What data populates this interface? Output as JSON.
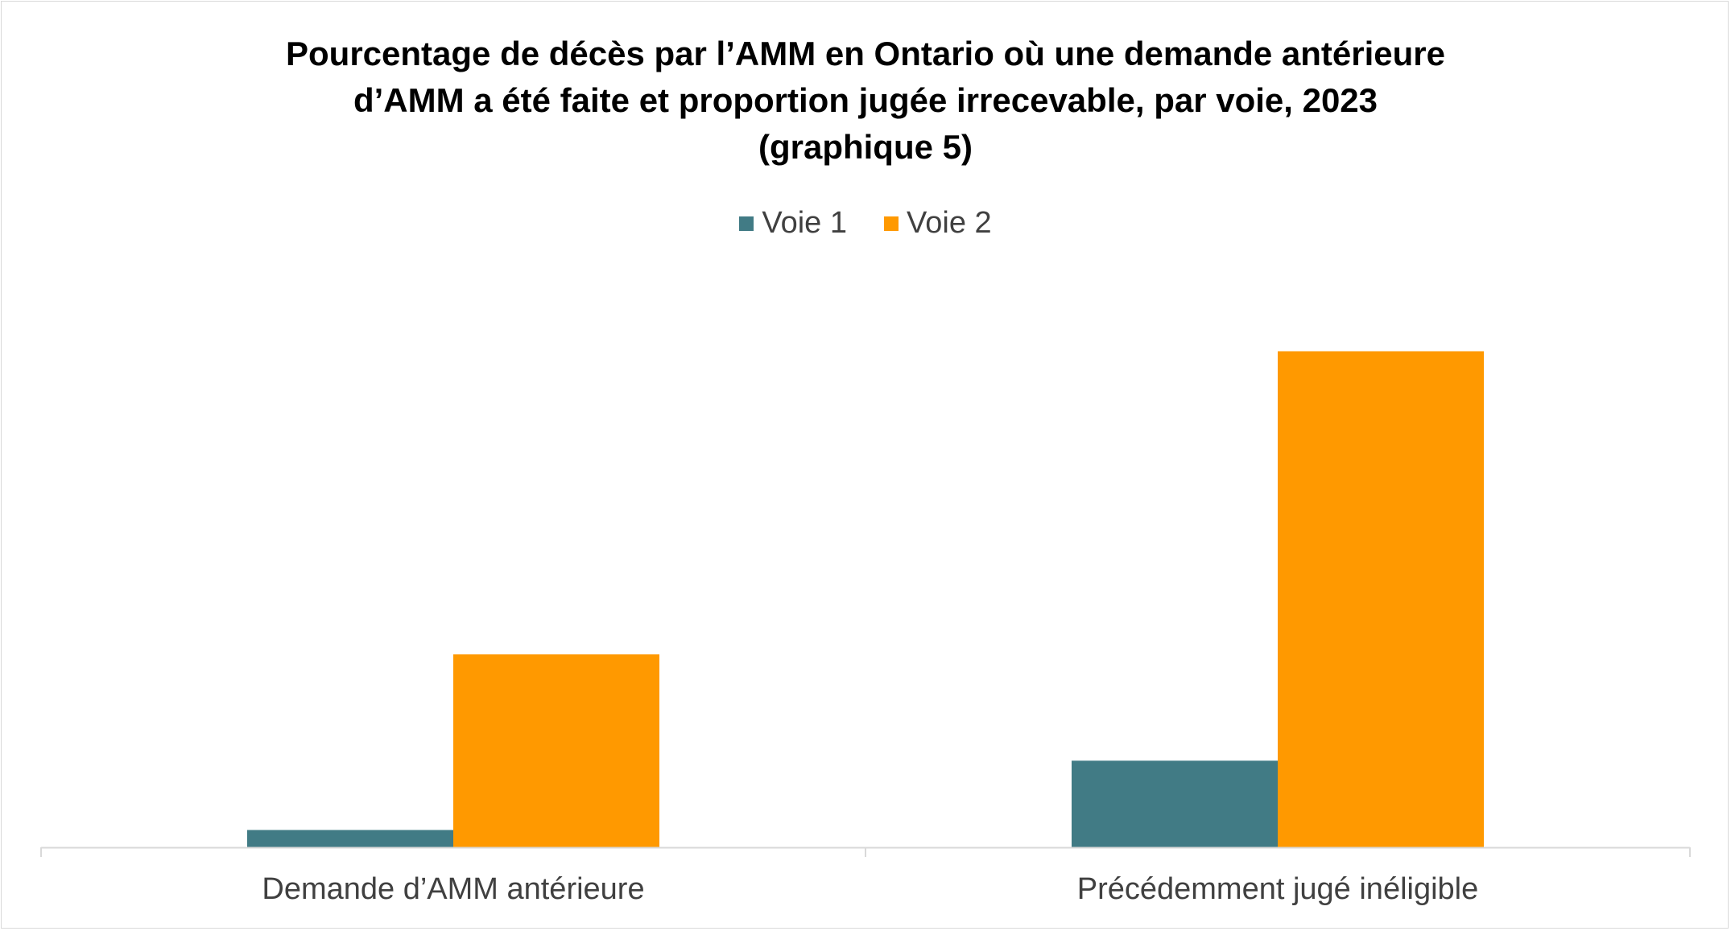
{
  "chart_data": {
    "type": "bar",
    "title_lines": [
      "Pourcentage de décès par l’AMM en Ontario où une demande antérieure",
      "d’AMM a été faite et proportion jugée irrecevable, par voie, 2023",
      "(graphique 5)"
    ],
    "categories": [
      "Demande d’AMM antérieure",
      "Précédemment jugé inéligible"
    ],
    "series": [
      {
        "name": "Voie 1",
        "color": "#417B85",
        "values": [
          2.2,
          11.0
        ]
      },
      {
        "name": "Voie 2",
        "color": "#FF9900",
        "values": [
          24.5,
          63.0
        ]
      }
    ],
    "ylim": [
      0,
      70
    ],
    "xlabel": "",
    "ylabel": "",
    "grid": false,
    "legend_position": "top-center",
    "axis_color": "#d9d9d9"
  }
}
